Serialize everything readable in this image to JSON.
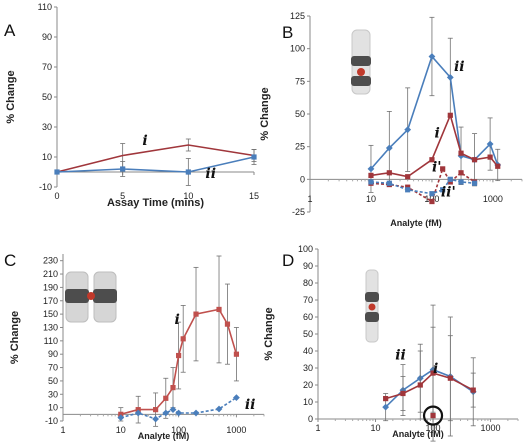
{
  "chart_data": [
    {
      "id": "A",
      "type": "line",
      "panel_label": "A",
      "xlabel": "Assay Time (mins)",
      "ylabel": "% Change",
      "xscale": "linear",
      "xlim": [
        0,
        15
      ],
      "ylim": [
        -10,
        110
      ],
      "xticks": [
        0,
        5,
        10,
        15
      ],
      "yticks": [
        -10,
        10,
        30,
        50,
        70,
        90,
        110
      ],
      "annotations": [
        {
          "text": "i",
          "x": 6.5,
          "y": 18
        },
        {
          "text": "ii",
          "x": 11.3,
          "y": -4
        }
      ],
      "series": [
        {
          "color": "#a0363b",
          "marker": "line",
          "dashed": false,
          "x": [
            0,
            5,
            10,
            15
          ],
          "y": [
            0,
            11,
            18,
            11
          ],
          "err": [
            0,
            8,
            4,
            4
          ]
        },
        {
          "color": "#4a7ebb",
          "marker": "square",
          "dashed": false,
          "x": [
            0,
            5,
            10,
            15
          ],
          "y": [
            0,
            2,
            0,
            10
          ],
          "err": [
            0,
            5,
            9,
            5
          ]
        }
      ]
    },
    {
      "id": "B",
      "type": "line",
      "panel_label": "B",
      "xlabel": "Analyte (fM)",
      "ylabel": "% Change",
      "xscale": "log",
      "xlim": [
        1,
        3000
      ],
      "ylim": [
        -25,
        125
      ],
      "xticks": [
        1,
        10,
        100,
        1000
      ],
      "yticks": [
        -25,
        0,
        25,
        50,
        75,
        100,
        125
      ],
      "annotations": [
        {
          "text": "ii",
          "x": 230,
          "y": 83
        },
        {
          "text": "i",
          "x": 110,
          "y": 32
        },
        {
          "text": "i'",
          "x": 100,
          "y": 6
        },
        {
          "text": "ii'",
          "x": 140,
          "y": -13
        }
      ],
      "series": [
        {
          "color": "#4a7ebb",
          "marker": "diamond",
          "dashed": false,
          "x": [
            10,
            20,
            40,
            100,
            200,
            300,
            500,
            900,
            1200
          ],
          "y": [
            8,
            24,
            38,
            94,
            78,
            18,
            15,
            27,
            11
          ],
          "err": [
            18,
            28,
            32,
            30,
            30,
            22,
            20,
            20,
            12
          ]
        },
        {
          "color": "#a0363b",
          "marker": "square",
          "dashed": false,
          "x": [
            10,
            20,
            40,
            100,
            200,
            300,
            500,
            900,
            1200
          ],
          "y": [
            3,
            5,
            2,
            15,
            49,
            20,
            15,
            17,
            10
          ],
          "err": [
            0,
            0,
            0,
            0,
            0,
            0,
            0,
            0,
            0
          ]
        },
        {
          "color": "#a0363b",
          "marker": "square",
          "dashed": true,
          "x": [
            10,
            20,
            40,
            100,
            150,
            200,
            300,
            500
          ],
          "y": [
            -3,
            -4,
            -6,
            -17,
            8,
            -2,
            5,
            -2
          ],
          "err": [
            0,
            0,
            0,
            0,
            0,
            0,
            0,
            0
          ]
        },
        {
          "color": "#4a7ebb",
          "marker": "square",
          "dashed": true,
          "x": [
            10,
            20,
            40,
            100,
            150,
            200,
            300,
            500
          ],
          "y": [
            -2,
            -3,
            -8,
            -11,
            -8,
            0,
            -2,
            -3
          ],
          "err": [
            0,
            0,
            0,
            0,
            0,
            0,
            0,
            0
          ]
        }
      ]
    },
    {
      "id": "C",
      "type": "line",
      "panel_label": "C",
      "xlabel": "Analyte (fM)",
      "ylabel": "% Change",
      "xscale": "log",
      "xlim": [
        1,
        3000
      ],
      "ylim": [
        -10,
        240
      ],
      "xticks": [
        1,
        10,
        100,
        1000
      ],
      "yticks": [
        -10,
        10,
        30,
        50,
        70,
        90,
        110,
        130,
        150,
        170,
        190,
        210,
        230
      ],
      "annotations": [
        {
          "text": "i",
          "x": 85,
          "y": 135
        },
        {
          "text": "ii",
          "x": 1400,
          "y": 8
        }
      ],
      "series": [
        {
          "color": "#c0504d",
          "marker": "square",
          "dashed": false,
          "x": [
            10,
            20,
            40,
            60,
            80,
            100,
            120,
            200,
            500,
            700,
            1000
          ],
          "y": [
            0,
            7,
            7,
            24,
            40,
            88,
            113,
            150,
            157,
            135,
            90
          ],
          "err": [
            10,
            20,
            25,
            30,
            30,
            50,
            50,
            70,
            80,
            60,
            40
          ]
        },
        {
          "color": "#4a7ebb",
          "marker": "diamond",
          "dashed": true,
          "x": [
            10,
            20,
            40,
            60,
            80,
            100,
            200,
            500,
            1000
          ],
          "y": [
            -5,
            2,
            -7,
            2,
            7,
            2,
            2,
            8,
            25
          ],
          "err": [
            0,
            0,
            0,
            0,
            0,
            0,
            0,
            0,
            0
          ]
        }
      ]
    },
    {
      "id": "D",
      "type": "line",
      "panel_label": "D",
      "xlabel": "Analyte (fM)",
      "ylabel": "% Change",
      "xscale": "log",
      "xlim": [
        1,
        3000
      ],
      "ylim": [
        0,
        100
      ],
      "xticks": [
        1,
        10,
        100,
        1000
      ],
      "yticks": [
        0,
        10,
        20,
        30,
        40,
        50,
        60,
        70,
        80,
        90,
        100
      ],
      "annotations": [
        {
          "text": "ii",
          "x": 22,
          "y": 35
        },
        {
          "text": "i",
          "x": 100,
          "y": 27
        }
      ],
      "series": [
        {
          "color": "#4a7ebb",
          "marker": "diamond",
          "dashed": false,
          "x": [
            15,
            30,
            60,
            100,
            200,
            500
          ],
          "y": [
            7,
            17,
            24,
            29,
            25,
            16
          ],
          "err": [
            8,
            15,
            20,
            25,
            35,
            20
          ]
        },
        {
          "color": "#a0363b",
          "marker": "square",
          "dashed": false,
          "x": [
            15,
            30,
            60,
            100,
            200,
            500
          ],
          "y": [
            12,
            15,
            20,
            27,
            24,
            17
          ],
          "err": [
            0,
            10,
            20,
            40,
            25,
            10
          ]
        },
        {
          "color": "#a0363b",
          "marker": "square",
          "dashed": false,
          "standalone": true,
          "x": [
            100
          ],
          "y": [
            2
          ],
          "err": [
            0
          ]
        }
      ]
    }
  ]
}
